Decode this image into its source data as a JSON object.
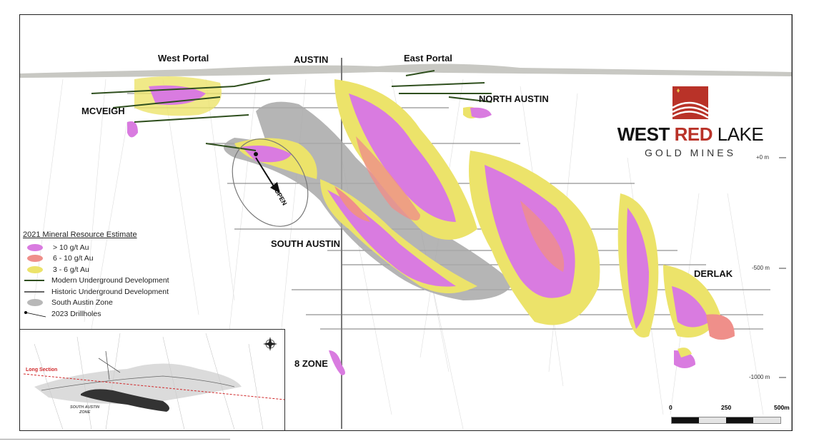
{
  "labels": {
    "west_portal": "West Portal",
    "austin": "AUSTIN",
    "east_portal": "East Portal",
    "north_austin": "NORTH AUSTIN",
    "mcveigh": "MCVEIGH",
    "south_austin": "SOUTH AUSTIN",
    "derlak": "DERLAK",
    "eight_zone": "8 ZONE",
    "open": "OPEN"
  },
  "elevation_ticks": [
    "+0 m",
    "-500 m",
    "-1000 m"
  ],
  "logo": {
    "line1_a": "WEST",
    "line1_b": "RED",
    "line1_c": "LAKE",
    "line2": "GOLD MINES",
    "brand_color": "#b93228"
  },
  "legend": {
    "title": "2021 Mineral Resource Estimate",
    "items": [
      {
        "label": "> 10 g/t Au",
        "color": "#d97be0"
      },
      {
        "label": "6 - 10 g/t Au",
        "color": "#ef8f8a"
      },
      {
        "label": "3 - 6 g/t Au",
        "color": "#ece36a"
      },
      {
        "label": "Modern Underground Development",
        "color": "#2f4f1e"
      },
      {
        "label": "Historic Underground Development",
        "color": "#666666"
      },
      {
        "label": "South Austin Zone",
        "color": "#b8b8b8"
      },
      {
        "label": "2023 Drillholes",
        "color": "#000000"
      }
    ]
  },
  "inset": {
    "long_section": "Long Section",
    "zone_label_1": "SOUTH AUSTIN",
    "zone_label_2": "ZONE",
    "long_section_color": "#d0282a",
    "north_arrow": "compass-rose-icon"
  },
  "scale_bar": {
    "ticks": [
      "0",
      "250",
      "500m"
    ]
  }
}
